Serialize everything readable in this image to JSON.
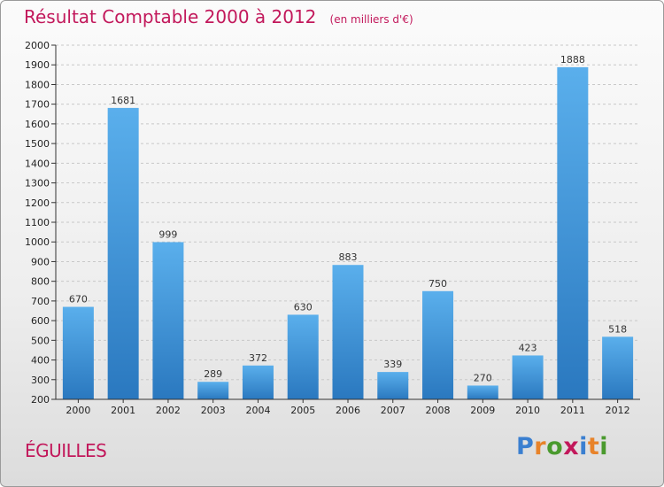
{
  "header": {
    "title": "Résultat Comptable 2000 à 2012",
    "subtitle": "(en milliers d'€)"
  },
  "footer": {
    "commune": "ÉGUILLES",
    "logo_text": "Proxiti",
    "logo_letter_colors": [
      "#3a7fd0",
      "#e8832a",
      "#4a9a2e",
      "#c2185b",
      "#3a7fd0",
      "#e8832a",
      "#4a9a2e"
    ]
  },
  "colors": {
    "title": "#c2185b",
    "bar_top": "#5aafec",
    "bar_bottom": "#2a78bf",
    "grid": "#c8c8c8",
    "axis": "#333333"
  },
  "chart_data": {
    "type": "bar",
    "title": "Résultat Comptable 2000 à 2012",
    "subtitle": "(en milliers d'€)",
    "xlabel": "",
    "ylabel": "",
    "categories": [
      "2000",
      "2001",
      "2002",
      "2003",
      "2004",
      "2005",
      "2006",
      "2007",
      "2008",
      "2009",
      "2010",
      "2011",
      "2012"
    ],
    "values": [
      670,
      1681,
      999,
      289,
      372,
      630,
      883,
      339,
      750,
      270,
      423,
      1888,
      518
    ],
    "ylim": [
      200,
      2000
    ],
    "yticks": [
      200,
      300,
      400,
      500,
      600,
      700,
      800,
      900,
      1000,
      1100,
      1200,
      1300,
      1400,
      1500,
      1600,
      1700,
      1800,
      1900,
      2000
    ],
    "grid": true,
    "legend": "none"
  }
}
